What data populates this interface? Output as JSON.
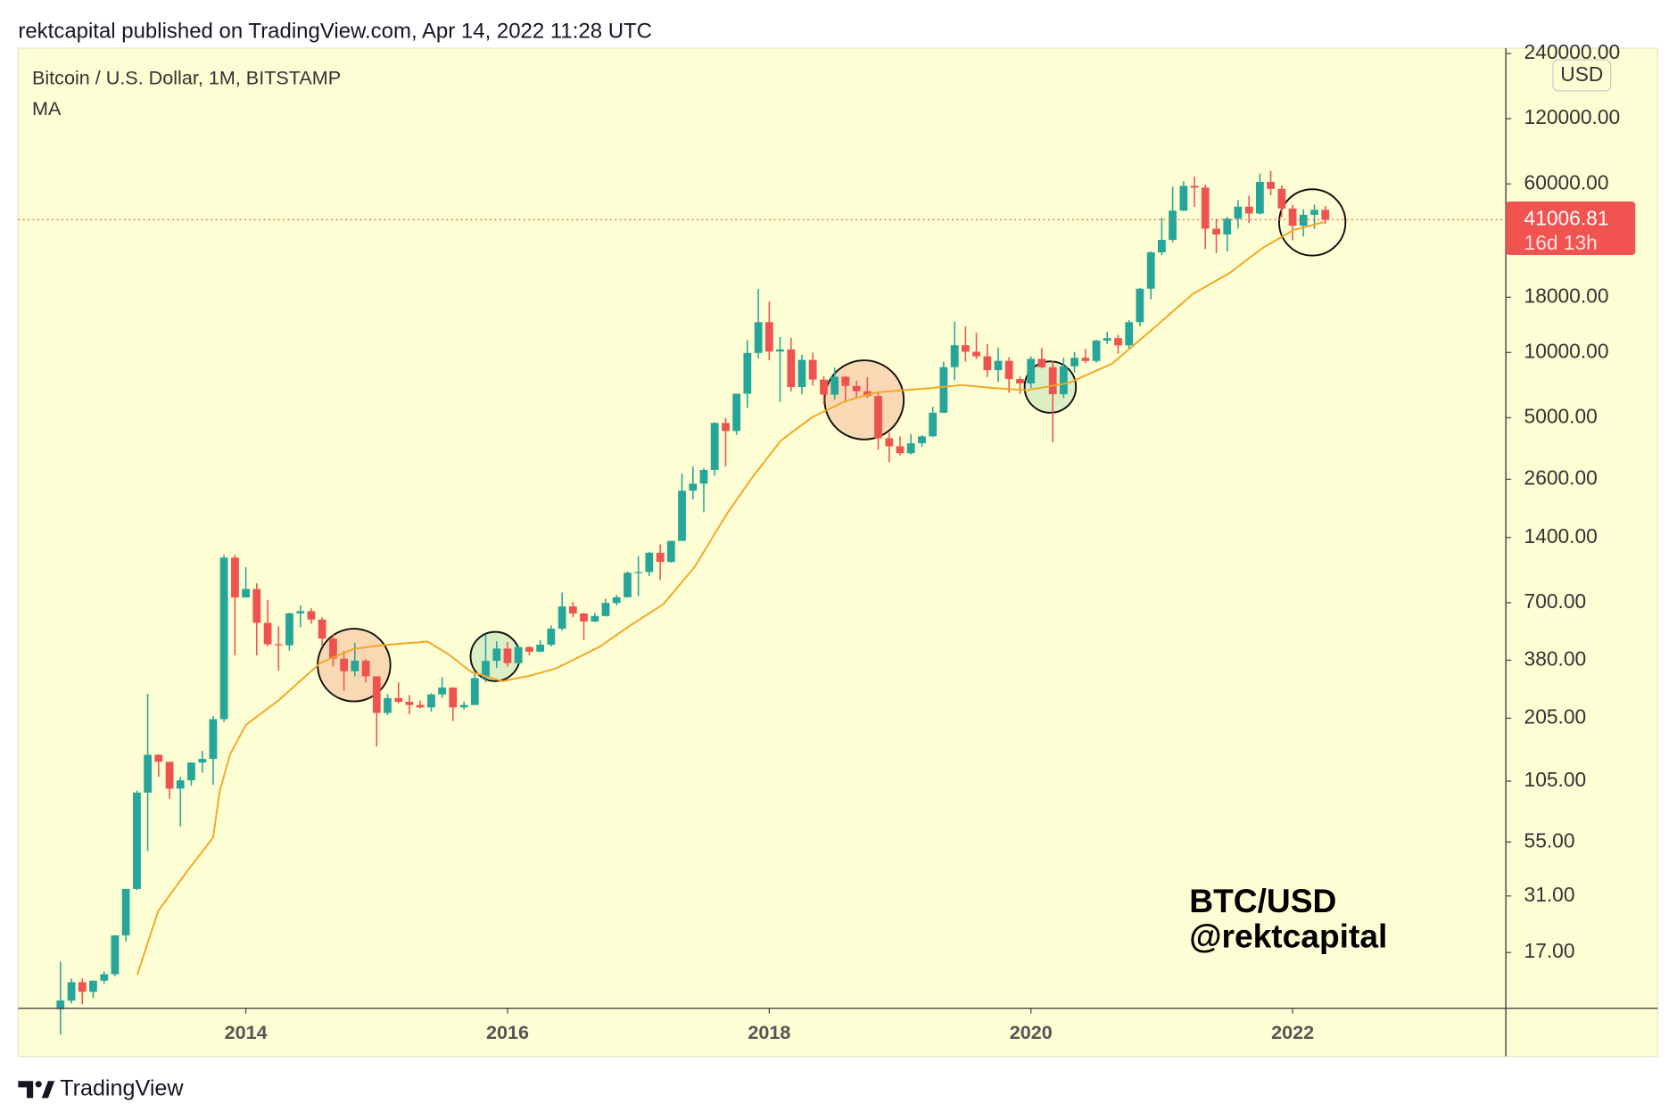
{
  "header": "rektcapital published on TradingView.com, Apr 14, 2022 11:28 UTC",
  "footer": "TradingView",
  "chart_data": {
    "type": "candlestick",
    "title": "Bitcoin / U.S. Dollar, 1M, BITSTAMP",
    "y_unit": "USD",
    "watermark": [
      "BTC/USD",
      "@rektcapital"
    ],
    "up_color": "#26a69a",
    "down_color": "#ef5350",
    "log_scale": true,
    "grid": false,
    "x": [
      2012.583,
      2012.667,
      2012.75,
      2012.833,
      2012.917,
      2013,
      2013.083,
      2013.167,
      2013.25,
      2013.333,
      2013.417,
      2013.5,
      2013.583,
      2013.667,
      2013.75,
      2013.833,
      2013.917,
      2014,
      2014.083,
      2014.167,
      2014.25,
      2014.333,
      2014.417,
      2014.5,
      2014.583,
      2014.667,
      2014.75,
      2014.833,
      2014.917,
      2015,
      2015.083,
      2015.167,
      2015.25,
      2015.333,
      2015.417,
      2015.5,
      2015.583,
      2015.667,
      2015.75,
      2015.833,
      2015.917,
      2016,
      2016.083,
      2016.167,
      2016.25,
      2016.333,
      2016.417,
      2016.5,
      2016.583,
      2016.667,
      2016.75,
      2016.833,
      2016.917,
      2017,
      2017.083,
      2017.167,
      2017.25,
      2017.333,
      2017.417,
      2017.5,
      2017.583,
      2017.667,
      2017.75,
      2017.833,
      2017.917,
      2018,
      2018.083,
      2018.167,
      2018.25,
      2018.333,
      2018.417,
      2018.5,
      2018.583,
      2018.667,
      2018.75,
      2018.833,
      2018.917,
      2019,
      2019.083,
      2019.167,
      2019.25,
      2019.333,
      2019.417,
      2019.5,
      2019.583,
      2019.667,
      2019.75,
      2019.833,
      2019.917,
      2020,
      2020.083,
      2020.167,
      2020.25,
      2020.333,
      2020.417,
      2020.5,
      2020.583,
      2020.667,
      2020.75,
      2020.833,
      2020.917,
      2021,
      2021.083,
      2021.167,
      2021.25,
      2021.333,
      2021.417,
      2021.5,
      2021.583,
      2021.667,
      2021.75,
      2021.833,
      2021.917,
      2022,
      2022.083,
      2022.167,
      2022.25
    ],
    "open": [
      9.3,
      10.2,
      12.4,
      11.2,
      12.6,
      13.5,
      20.4,
      33.4,
      93,
      139,
      129,
      97,
      106,
      128,
      133,
      203,
      1130,
      740,
      810,
      565,
      450,
      445,
      625,
      640,
      585,
      478,
      386,
      338,
      378,
      320,
      217,
      254,
      244,
      236,
      230,
      264,
      284,
      230,
      236,
      314,
      377,
      430,
      368,
      437,
      416,
      448,
      531,
      673,
      624,
      573,
      608,
      698,
      742,
      962,
      970,
      1190,
      1080,
      1350,
      2300,
      2480,
      2870,
      4730,
      4340,
      6450,
      9950,
      13800,
      10100,
      10330,
      6925,
      9240,
      7500,
      6390,
      7730,
      7010,
      6625,
      6300,
      4020,
      3690,
      3430,
      3810,
      4100,
      5270,
      8560,
      10800,
      10080,
      9600,
      8290,
      9150,
      7540,
      7200,
      9350,
      8540,
      6420,
      8630,
      9450,
      9140,
      11350,
      11650,
      10780,
      13800,
      19700,
      28990,
      33110,
      45160,
      58780,
      57700,
      37280,
      35040,
      41460,
      47100,
      43800,
      61300,
      56900,
      46200,
      38480,
      43190,
      45540
    ],
    "high": [
      15.4,
      12.9,
      12.9,
      12.6,
      13.9,
      20.4,
      33.4,
      95,
      266,
      140,
      129,
      110,
      128,
      145,
      210,
      1163,
      1163,
      1020,
      860,
      720,
      545,
      630,
      680,
      660,
      600,
      500,
      420,
      457,
      385,
      320,
      265,
      300,
      262,
      247,
      267,
      317,
      285,
      245,
      335,
      500,
      465,
      460,
      445,
      440,
      470,
      550,
      780,
      705,
      630,
      628,
      730,
      760,
      975,
      1150,
      1200,
      1300,
      1350,
      2760,
      2980,
      2920,
      4760,
      4980,
      6450,
      11400,
      19660,
      17170,
      11780,
      11680,
      9750,
      9990,
      7770,
      8500,
      7760,
      7410,
      7680,
      6570,
      4260,
      4100,
      4200,
      4150,
      5620,
      9070,
      13880,
      13200,
      12330,
      10950,
      10540,
      9510,
      7750,
      9590,
      10500,
      9180,
      9460,
      10060,
      10390,
      11440,
      12470,
      12060,
      14100,
      19880,
      29300,
      41950,
      58350,
      61780,
      64900,
      59600,
      41330,
      42300,
      50500,
      52920,
      66970,
      69000,
      59050,
      47990,
      45800,
      48200,
      47450
    ],
    "low": [
      7.1,
      9.9,
      9.8,
      10.5,
      12.2,
      13.2,
      19.1,
      33,
      50,
      110,
      87,
      65,
      100,
      115,
      101,
      197,
      400,
      740,
      400,
      440,
      340,
      420,
      540,
      560,
      440,
      355,
      275,
      320,
      300,
      152,
      212,
      240,
      214,
      228,
      220,
      254,
      199,
      225,
      236,
      300,
      350,
      355,
      365,
      400,
      413,
      440,
      520,
      600,
      470,
      570,
      604,
      680,
      740,
      750,
      930,
      890,
      1070,
      1350,
      2100,
      1830,
      2700,
      2980,
      4160,
      5550,
      9400,
      9200,
      5900,
      6600,
      6430,
      7030,
      5780,
      6070,
      5880,
      6100,
      6180,
      3560,
      3120,
      3350,
      3380,
      3670,
      4080,
      5270,
      7450,
      9070,
      9320,
      7710,
      7300,
      6520,
      6430,
      6850,
      8440,
      3850,
      6150,
      8100,
      8940,
      8980,
      10950,
      9880,
      10380,
      13200,
      17600,
      28130,
      32300,
      44950,
      47000,
      30000,
      28800,
      29280,
      37300,
      39600,
      43280,
      53250,
      42000,
      32950,
      34300,
      37200,
      39200
    ],
    "close": [
      10.2,
      12.4,
      11.2,
      12.6,
      13.5,
      20.4,
      33.4,
      93,
      139,
      129,
      97,
      106,
      128,
      133,
      203,
      1130,
      740,
      810,
      565,
      450,
      445,
      625,
      640,
      585,
      478,
      386,
      338,
      378,
      320,
      217,
      254,
      244,
      236,
      230,
      264,
      284,
      230,
      236,
      314,
      377,
      430,
      368,
      437,
      416,
      448,
      531,
      673,
      624,
      573,
      608,
      698,
      742,
      962,
      970,
      1190,
      1080,
      1350,
      2300,
      2480,
      2870,
      4730,
      4340,
      6450,
      9950,
      13800,
      10100,
      10330,
      6925,
      9240,
      7500,
      6390,
      7730,
      7010,
      6625,
      6300,
      4020,
      3690,
      3430,
      3810,
      4100,
      5270,
      8560,
      10800,
      10080,
      9600,
      8290,
      9150,
      7540,
      7200,
      9350,
      8540,
      6420,
      8630,
      9450,
      9140,
      11350,
      11650,
      10780,
      13800,
      19700,
      28990,
      33110,
      45160,
      58780,
      57700,
      37280,
      35040,
      41460,
      47100,
      43800,
      61300,
      56900,
      46200,
      38480,
      43190,
      45540,
      41006.81
    ],
    "ma": {
      "name": "MA",
      "color": "#f5a623",
      "x": [
        2013.17,
        2013.33,
        2013.55,
        2013.75,
        2013.8,
        2013.88,
        2014,
        2014.25,
        2014.57,
        2014.82,
        2015.06,
        2015.39,
        2015.55,
        2015.72,
        2015.96,
        2016.17,
        2016.37,
        2016.7,
        2016.94,
        2017.19,
        2017.43,
        2017.68,
        2017.88,
        2018.09,
        2018.33,
        2018.58,
        2018.82,
        2019.23,
        2019.47,
        2019.72,
        2019.97,
        2020.29,
        2020.62,
        2020.91,
        2021.24,
        2021.52,
        2021.77,
        2022.01,
        2022.24
      ],
      "values": [
        13.4,
        26.4,
        40.2,
        57.8,
        94.4,
        140,
        191,
        248,
        369,
        428,
        447,
        463,
        404,
        336,
        304,
        322,
        348,
        437,
        550,
        688,
        1024,
        1814,
        2696,
        3926,
        5030,
        5963,
        6546,
        6846,
        7075,
        6846,
        6700,
        7236,
        8881,
        12512,
        18676,
        23303,
        30346,
        36812,
        40000
      ]
    },
    "last_price": 41006.81,
    "countdown": "16d 13h",
    "xlim": [
      2012.26,
      2023.63
    ],
    "xticks": [
      2014,
      2016,
      2018,
      2020,
      2022
    ],
    "ylim": [
      9.4,
      254000
    ],
    "yticks": [
      {
        "value": 240000,
        "label": "240000.00"
      },
      {
        "value": 120000,
        "label": "120000.00"
      },
      {
        "value": 60000,
        "label": "60000.00"
      },
      {
        "value": 18000,
        "label": "18000.00"
      },
      {
        "value": 10000,
        "label": "10000.00"
      },
      {
        "value": 5000,
        "label": "5000.00"
      },
      {
        "value": 2600,
        "label": "2600.00"
      },
      {
        "value": 1400,
        "label": "1400.00"
      },
      {
        "value": 700,
        "label": "700.00"
      },
      {
        "value": 380,
        "label": "380.00"
      },
      {
        "value": 205,
        "label": "205.00"
      },
      {
        "value": 105,
        "label": "105.00"
      },
      {
        "value": 55,
        "label": "55.00"
      },
      {
        "value": 31,
        "label": "31.00"
      },
      {
        "value": 17,
        "label": "17.00"
      }
    ]
  }
}
